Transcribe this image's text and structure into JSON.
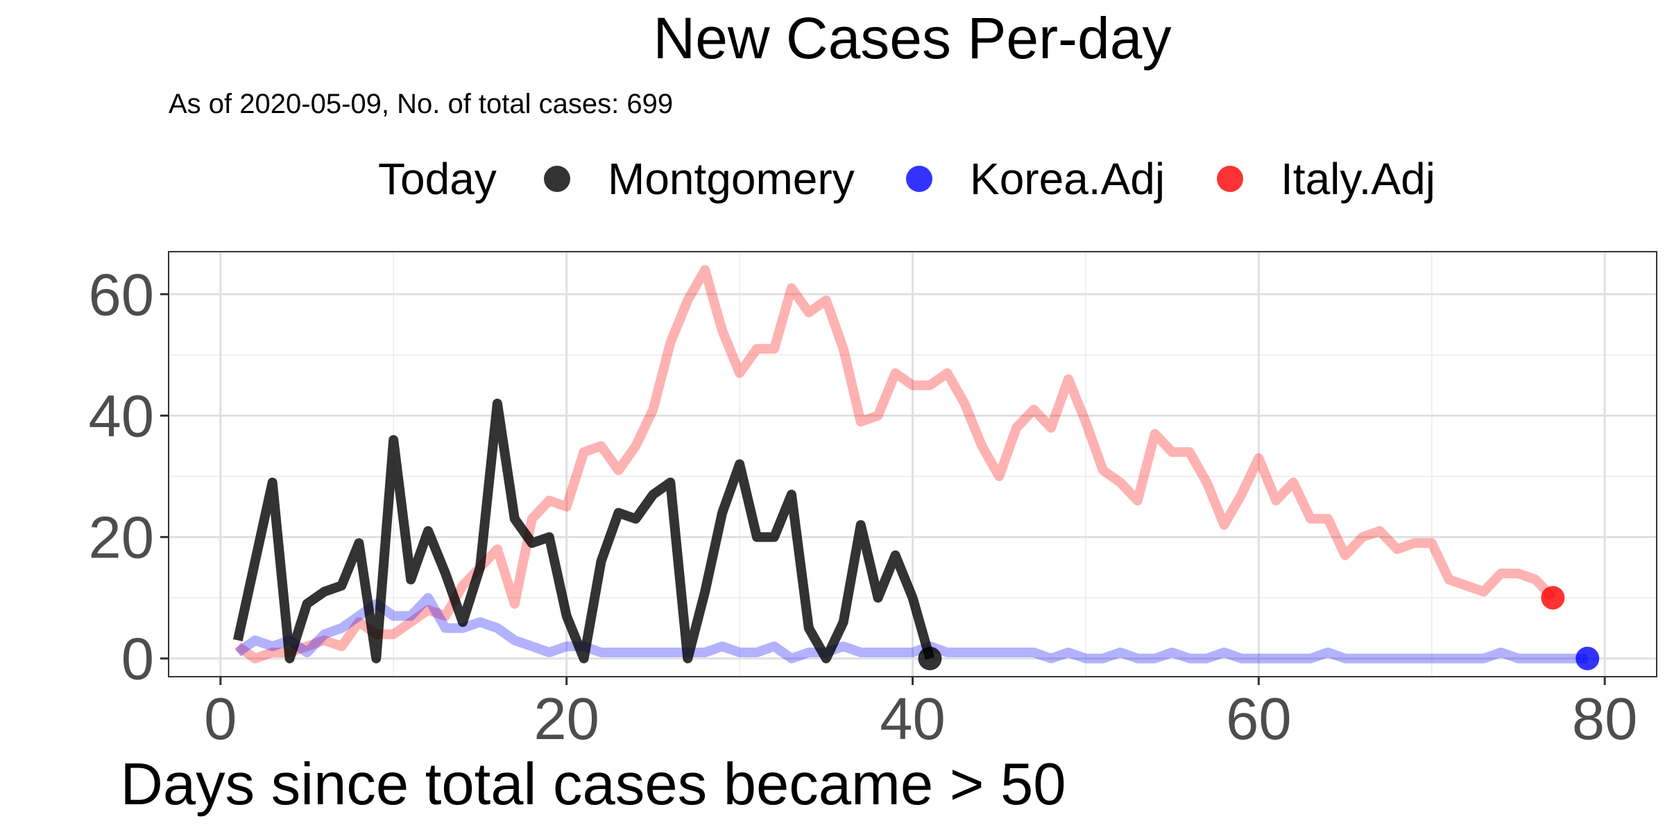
{
  "chart_data": {
    "type": "line",
    "title": "New Cases Per-day",
    "subtitle": "As of 2020-05-09, No. of total cases: 699",
    "xlabel": "Days since total cases became > 50",
    "ylabel": "",
    "xlim": [
      -3,
      83
    ],
    "ylim": [
      -3,
      67
    ],
    "xticks": [
      0,
      20,
      40,
      60,
      80
    ],
    "xtick_labels": [
      "0",
      "20",
      "40",
      "60",
      "80"
    ],
    "yticks": [
      0,
      20,
      40,
      60
    ],
    "ytick_labels": [
      "0",
      "20",
      "40",
      "60"
    ],
    "grid": true,
    "legend": {
      "title": "Today",
      "position": "top"
    },
    "series": [
      {
        "name": "Italy.Adj",
        "color": "#ff0000",
        "opacity": 0.3,
        "x": [
          1,
          2,
          3,
          4,
          5,
          6,
          7,
          8,
          9,
          10,
          11,
          12,
          13,
          14,
          15,
          16,
          17,
          18,
          19,
          20,
          21,
          22,
          23,
          24,
          25,
          26,
          27,
          28,
          29,
          30,
          31,
          32,
          33,
          34,
          35,
          36,
          37,
          38,
          39,
          40,
          41,
          42,
          43,
          44,
          45,
          46,
          47,
          48,
          49,
          50,
          51,
          52,
          53,
          54,
          55,
          56,
          57,
          58,
          59,
          60,
          61,
          62,
          63,
          64,
          65,
          66,
          67,
          68,
          69,
          70,
          71,
          72,
          73,
          74,
          75,
          76,
          77
        ],
        "y": [
          2,
          0,
          1,
          1,
          2,
          3,
          2,
          6,
          4,
          4,
          6,
          8,
          7,
          12,
          15,
          18,
          9,
          23,
          26,
          25,
          34,
          35,
          31,
          35,
          41,
          52,
          59,
          64,
          54,
          47,
          51,
          51,
          61,
          57,
          59,
          51,
          39,
          40,
          47,
          45,
          45,
          47,
          42,
          35,
          30,
          38,
          41,
          38,
          46,
          39,
          31,
          29,
          26,
          37,
          34,
          34,
          29,
          22,
          27,
          33,
          26,
          29,
          23,
          23,
          17,
          20,
          21,
          18,
          19,
          19,
          13,
          12,
          11,
          14,
          14,
          13,
          10
        ]
      },
      {
        "name": "Korea.Adj",
        "color": "#0000ff",
        "opacity": 0.3,
        "x": [
          1,
          2,
          3,
          4,
          5,
          6,
          7,
          8,
          9,
          10,
          11,
          12,
          13,
          14,
          15,
          16,
          17,
          18,
          19,
          20,
          21,
          22,
          23,
          24,
          25,
          26,
          27,
          28,
          29,
          30,
          31,
          32,
          33,
          34,
          35,
          36,
          37,
          38,
          39,
          40,
          41,
          42,
          43,
          44,
          45,
          46,
          47,
          48,
          49,
          50,
          51,
          52,
          53,
          54,
          55,
          56,
          57,
          58,
          59,
          60,
          61,
          62,
          63,
          64,
          65,
          66,
          67,
          68,
          69,
          70,
          71,
          72,
          73,
          74,
          75,
          76,
          77,
          78,
          79
        ],
        "y": [
          1,
          3,
          2,
          3,
          1,
          4,
          5,
          7,
          9,
          7,
          7,
          10,
          5,
          5,
          6,
          5,
          3,
          2,
          1,
          2,
          2,
          1,
          1,
          1,
          1,
          1,
          1,
          1,
          2,
          1,
          1,
          2,
          0,
          1,
          1,
          2,
          1,
          1,
          1,
          1,
          2,
          1,
          1,
          1,
          1,
          1,
          1,
          0,
          1,
          0,
          0,
          1,
          0,
          0,
          1,
          0,
          0,
          1,
          0,
          0,
          0,
          0,
          0,
          1,
          0,
          0,
          0,
          0,
          0,
          0,
          0,
          0,
          0,
          1,
          0,
          0,
          0,
          0,
          0
        ]
      },
      {
        "name": "Montgomery",
        "color": "#000000",
        "opacity": 0.8,
        "x": [
          1,
          2,
          3,
          4,
          5,
          6,
          7,
          8,
          9,
          10,
          11,
          12,
          13,
          14,
          15,
          16,
          17,
          18,
          19,
          20,
          21,
          22,
          23,
          24,
          25,
          26,
          27,
          28,
          29,
          30,
          31,
          32,
          33,
          34,
          35,
          36,
          37,
          38,
          39,
          40,
          41
        ],
        "y": [
          3,
          16,
          29,
          0,
          9,
          11,
          12,
          19,
          0,
          36,
          13,
          21,
          14,
          6,
          15,
          42,
          23,
          19,
          20,
          7,
          0,
          16,
          24,
          23,
          27,
          29,
          0,
          11,
          24,
          32,
          20,
          20,
          27,
          5,
          0,
          6,
          22,
          10,
          17,
          10,
          0
        ]
      }
    ],
    "legend_entries": [
      {
        "name": "Montgomery",
        "color": "#000000",
        "opacity": 0.8
      },
      {
        "name": "Korea.Adj",
        "color": "#0000ff",
        "opacity": 0.8
      },
      {
        "name": "Italy.Adj",
        "color": "#ff0000",
        "opacity": 0.8
      }
    ],
    "end_points": [
      {
        "name": "Montgomery",
        "x": 41,
        "y": 0,
        "color": "#000000"
      },
      {
        "name": "Korea.Adj",
        "x": 79,
        "y": 0,
        "color": "#0000ff"
      },
      {
        "name": "Italy.Adj",
        "x": 77,
        "y": 10,
        "color": "#ff0000"
      }
    ]
  }
}
